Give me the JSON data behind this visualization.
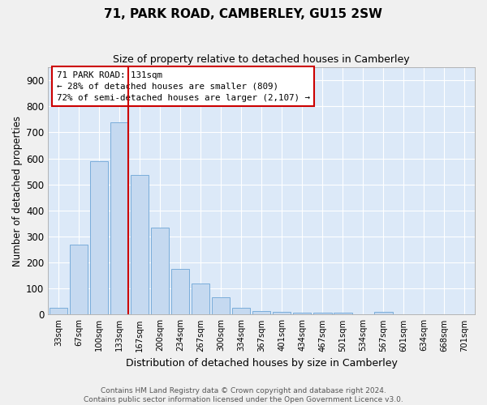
{
  "title": "71, PARK ROAD, CAMBERLEY, GU15 2SW",
  "subtitle": "Size of property relative to detached houses in Camberley",
  "xlabel": "Distribution of detached houses by size in Camberley",
  "ylabel": "Number of detached properties",
  "bar_labels": [
    "33sqm",
    "67sqm",
    "100sqm",
    "133sqm",
    "167sqm",
    "200sqm",
    "234sqm",
    "267sqm",
    "300sqm",
    "334sqm",
    "367sqm",
    "401sqm",
    "434sqm",
    "467sqm",
    "501sqm",
    "534sqm",
    "567sqm",
    "601sqm",
    "634sqm",
    "668sqm",
    "701sqm"
  ],
  "bar_values": [
    27,
    270,
    590,
    740,
    535,
    335,
    175,
    120,
    68,
    25,
    15,
    12,
    8,
    8,
    8,
    0,
    10,
    0,
    0,
    0,
    0
  ],
  "bar_color": "#c5d9f0",
  "bar_edge_color": "#7aadda",
  "vline_color": "#cc0000",
  "annotation_text": "71 PARK ROAD: 131sqm\n← 28% of detached houses are smaller (809)\n72% of semi-detached houses are larger (2,107) →",
  "ylim": [
    0,
    950
  ],
  "yticks": [
    0,
    100,
    200,
    300,
    400,
    500,
    600,
    700,
    800,
    900
  ],
  "background_color": "#dce9f8",
  "grid_color": "#ffffff",
  "fig_background": "#f0f0f0",
  "footer_line1": "Contains HM Land Registry data © Crown copyright and database right 2024.",
  "footer_line2": "Contains public sector information licensed under the Open Government Licence v3.0."
}
